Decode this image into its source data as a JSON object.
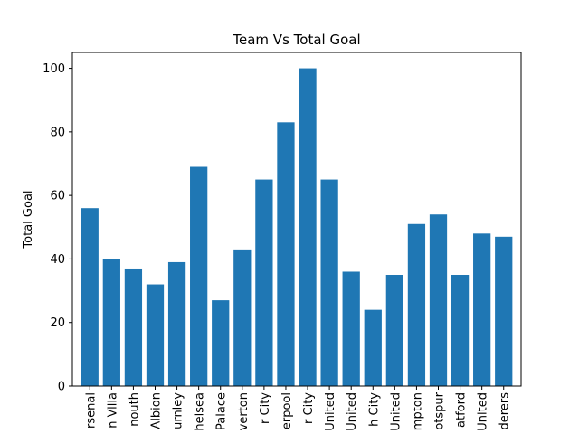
{
  "chart_data": {
    "type": "bar",
    "title": "Team Vs Total Goal",
    "xlabel": "",
    "ylabel": "Total Goal",
    "ylim": [
      0,
      105
    ],
    "yticks": [
      0,
      20,
      40,
      60,
      80,
      100
    ],
    "grid": false,
    "bar_color": "#1f77b4",
    "x_tick_rotation": "vertical",
    "categories": [
      "rsenal",
      "n Villa",
      "nouth",
      "Albion",
      "urnley",
      "helsea",
      "Palace",
      "verton",
      "r City",
      "erpool",
      "r City",
      "United",
      "United",
      "h City",
      "United",
      "mpton",
      "otspur",
      "atford",
      "United",
      "derers"
    ],
    "values": [
      56,
      40,
      37,
      32,
      39,
      69,
      27,
      43,
      65,
      83,
      100,
      65,
      36,
      24,
      35,
      51,
      54,
      35,
      48,
      47
    ]
  }
}
